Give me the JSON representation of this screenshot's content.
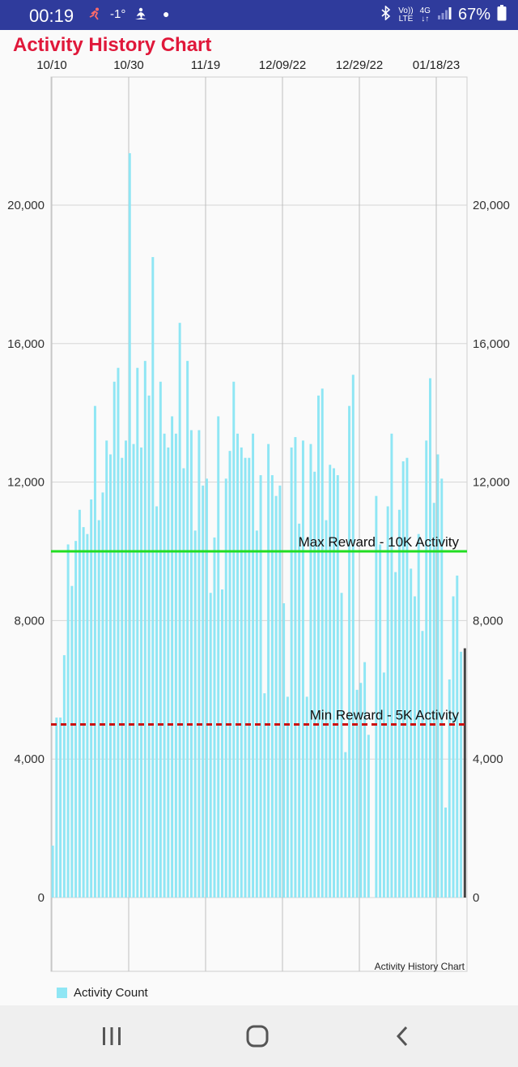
{
  "status_bar": {
    "time": "00:19",
    "notif_icons": [
      "running-figure-icon",
      "temperature-icon",
      "meditation-icon",
      "dot-icon"
    ],
    "notif_temp": "-1°",
    "net_top": "Vo))",
    "net_bottom": "LTE",
    "signal_gen": "4G",
    "battery": "67%"
  },
  "header": {
    "title": "Activity History Chart"
  },
  "chart_data": {
    "type": "bar",
    "title": "Activity History Chart",
    "caption": "Activity History Chart",
    "x_tick_labels": [
      "10/10",
      "10/30",
      "11/19",
      "12/09/22",
      "12/29/22",
      "01/18/23"
    ],
    "ylim": [
      0,
      25000
    ],
    "y_ticks": [
      0,
      4000,
      8000,
      12000,
      16000,
      20000
    ],
    "y_tick_labels": [
      "0",
      "4,000",
      "8,000",
      "12,000",
      "16,000",
      "20,000"
    ],
    "grid": true,
    "legend_position": "bottom-left",
    "series": [
      {
        "name": "Activity Count",
        "color": "#8fe6f4",
        "values": [
          1500,
          5200,
          5200,
          7000,
          10200,
          9000,
          10300,
          11200,
          10700,
          10500,
          11500,
          14200,
          10900,
          11700,
          13200,
          12800,
          14900,
          15300,
          12700,
          13200,
          21500,
          13100,
          15300,
          13000,
          15500,
          14500,
          18500,
          11300,
          14900,
          13400,
          13000,
          13900,
          13400,
          16600,
          12400,
          15500,
          13500,
          10600,
          13500,
          11900,
          12100,
          8800,
          10400,
          13900,
          8900,
          12100,
          12900,
          14900,
          13400,
          13000,
          12700,
          12700,
          13400,
          10600,
          12200,
          5900,
          13100,
          12200,
          11600,
          11900,
          8500,
          5800,
          13000,
          13300,
          10800,
          13200,
          5800,
          13100,
          12300,
          14500,
          14700,
          10900,
          12500,
          12400,
          12200,
          8800,
          4200,
          14200,
          15100,
          6000,
          6200,
          6800,
          4700,
          0,
          11600,
          10200,
          6500,
          11300,
          13400,
          9400,
          11200,
          12600,
          12700,
          9500,
          8700,
          10500,
          7700,
          13200,
          15000,
          11400,
          12800,
          12100,
          2600,
          6300,
          8700,
          9300,
          7100,
          7200
        ]
      }
    ],
    "reference_lines": [
      {
        "label": "Max Reward - 10K Activity",
        "value": 10000,
        "color": "#22dd22",
        "style": "solid"
      },
      {
        "label": "Min Reward - 5K Activity",
        "value": 5000,
        "color": "#cc1111",
        "style": "dashed"
      }
    ],
    "marker_bar_index": 107
  },
  "legend": {
    "label": "Activity Count"
  },
  "navbar": {
    "icons": [
      "recent-apps-icon",
      "home-icon",
      "back-icon"
    ]
  }
}
